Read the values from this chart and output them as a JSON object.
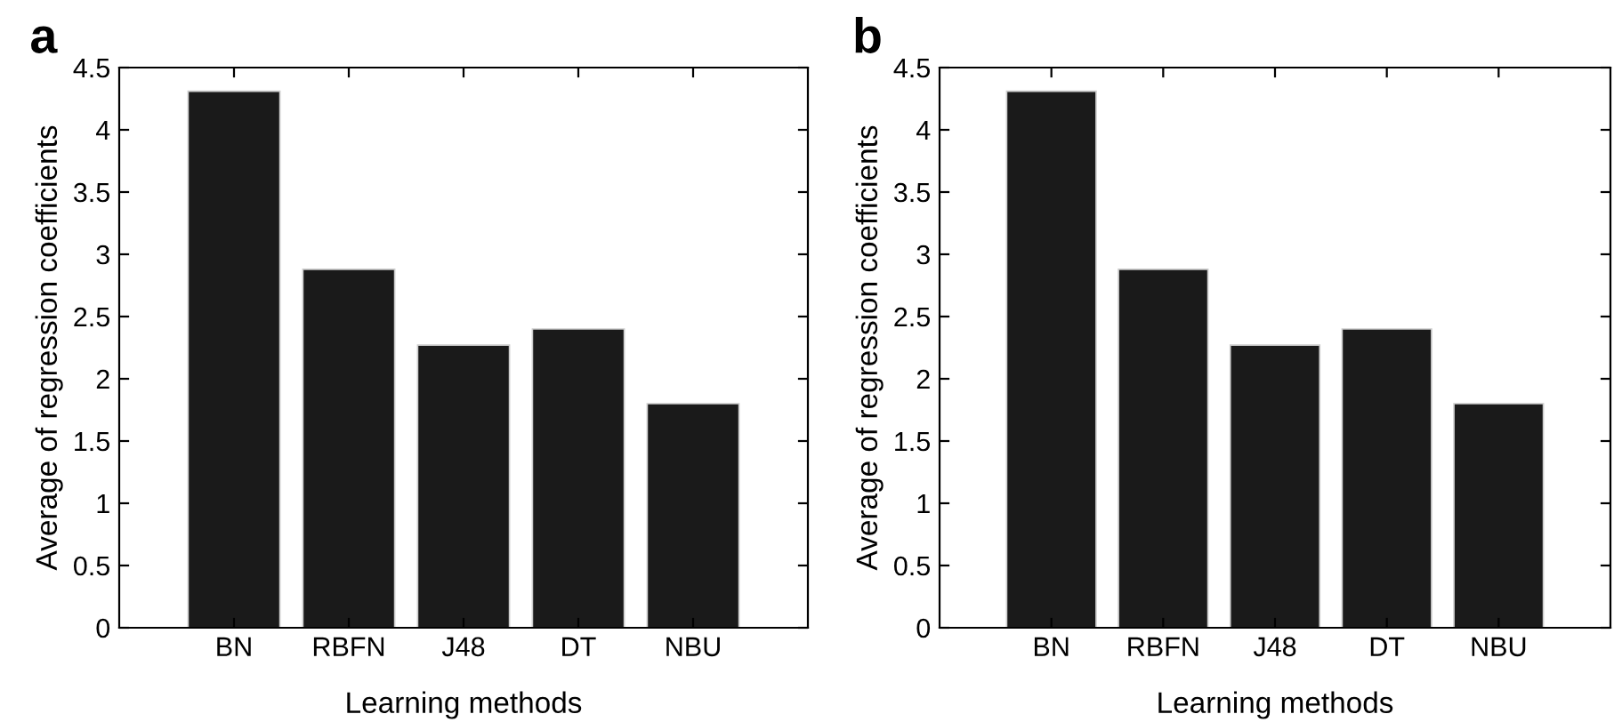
{
  "chart_data": [
    {
      "type": "bar",
      "title": "a",
      "xlabel": "Learning methods",
      "ylabel": "Average of regression coefficients",
      "categories": [
        "BN",
        "RBFN",
        "J48",
        "DT",
        "NBU"
      ],
      "values": [
        4.31,
        2.88,
        2.27,
        2.4,
        1.8
      ],
      "color": "#1a1a1a",
      "ylim": [
        0,
        4.5
      ],
      "yticks": [
        0,
        0.5,
        1,
        1.5,
        2,
        2.5,
        3,
        3.5,
        4,
        4.5
      ],
      "grid": false,
      "legend": false
    },
    {
      "type": "bar",
      "title": "b",
      "xlabel": "Learning methods",
      "ylabel": "Average of regression coefficients",
      "categories": [
        "BN",
        "RBFN",
        "J48",
        "DT",
        "NBU"
      ],
      "values": [
        4.31,
        2.88,
        2.27,
        2.4,
        1.8
      ],
      "color": "#1a1a1a",
      "ylim": [
        0,
        4.5
      ],
      "yticks": [
        0,
        0.5,
        1,
        1.5,
        2,
        2.5,
        3,
        3.5,
        4,
        4.5
      ],
      "grid": false,
      "legend": false
    }
  ]
}
